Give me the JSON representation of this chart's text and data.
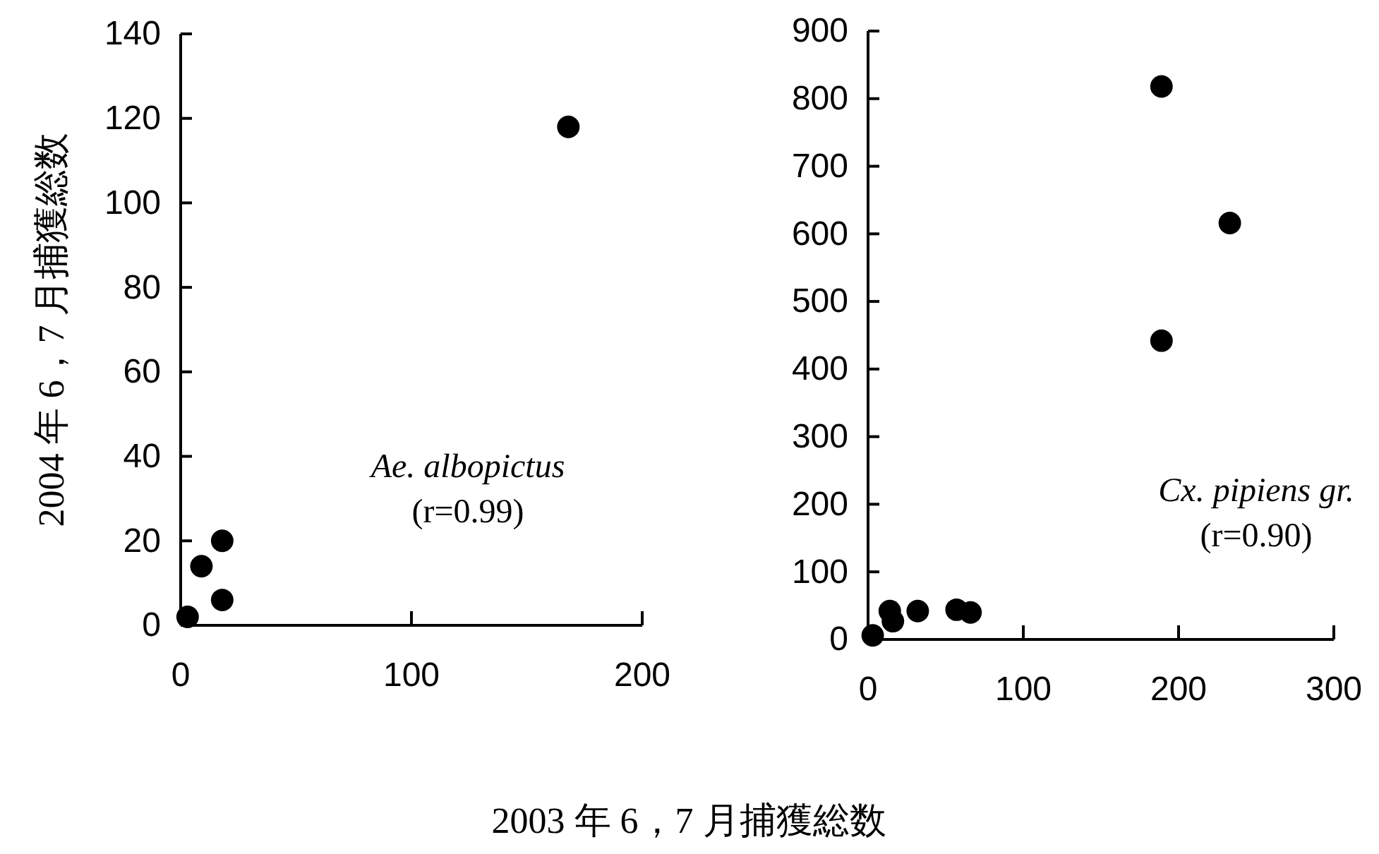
{
  "chart_data": [
    {
      "type": "scatter",
      "xlabel": "2003 年 6，7 月捕獲総数",
      "ylabel": "2004 年 6，7 月捕獲総数",
      "x": [
        3,
        9,
        18,
        18,
        168
      ],
      "values": [
        2,
        14,
        20,
        6,
        118
      ],
      "color": "#000000",
      "marker": "circle",
      "grid": false,
      "xlim": [
        0,
        200
      ],
      "xticks": [
        0,
        100,
        200
      ],
      "ylim": [
        0,
        140
      ],
      "yticks": [
        0,
        20,
        40,
        60,
        80,
        100,
        120,
        140
      ],
      "annotations": [
        "Ae. albopictus",
        "(r=0.99)"
      ]
    },
    {
      "type": "scatter",
      "x": [
        3,
        14,
        16,
        32,
        57,
        66,
        189,
        189,
        233
      ],
      "values": [
        6,
        42,
        27,
        42,
        44,
        40,
        818,
        442,
        616
      ],
      "color": "#000000",
      "marker": "circle",
      "grid": false,
      "xlim": [
        0,
        300
      ],
      "xticks": [
        0,
        100,
        200,
        300
      ],
      "ylim": [
        0,
        900
      ],
      "yticks": [
        0,
        100,
        200,
        300,
        400,
        500,
        600,
        700,
        800,
        900
      ],
      "annotations": [
        "Cx. pipiens gr.",
        "(r=0.90)"
      ]
    }
  ]
}
